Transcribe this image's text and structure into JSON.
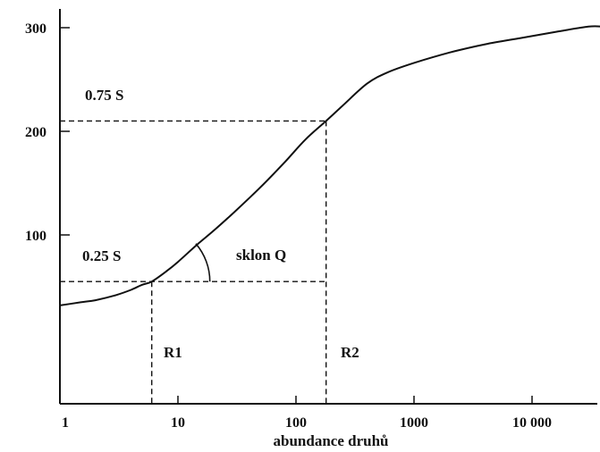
{
  "chart_data": {
    "type": "line",
    "xlabel": "abundance druhů",
    "ylabel": "",
    "x_scale": "log",
    "xlim": [
      1,
      40000
    ],
    "ylim": [
      -40,
      320
    ],
    "x_ticks": [
      {
        "value": 10,
        "label": "10"
      },
      {
        "value": 100,
        "label": "100"
      },
      {
        "value": 1000,
        "label": "1000"
      },
      {
        "value": 10000,
        "label": "10 000"
      }
    ],
    "x_origin_label": "1",
    "y_ticks": [
      {
        "value": 100,
        "label": "100"
      },
      {
        "value": 200,
        "label": "200"
      },
      {
        "value": 300,
        "label": "300"
      }
    ],
    "series": [
      {
        "x": [
          1,
          1.5,
          2,
          3,
          4,
          5,
          6,
          8,
          10,
          15,
          20,
          30,
          50,
          80,
          120,
          180,
          250,
          400,
          600,
          1000,
          2000,
          4000,
          8000,
          16000,
          30000,
          40000
        ],
        "y": [
          32,
          35,
          37,
          42,
          47,
          52,
          55,
          65,
          74,
          92,
          104,
          122,
          146,
          170,
          192,
          210,
          225,
          246,
          257,
          266,
          276,
          284,
          290,
          296,
          301,
          301
        ]
      }
    ],
    "guides": {
      "y_025S": 55,
      "y_075S": 210,
      "R1_x": 6,
      "R2_x": 180
    },
    "annotations": [
      {
        "key": "label_075",
        "text": "0.75 S"
      },
      {
        "key": "label_025",
        "text": "0.25 S"
      },
      {
        "key": "slope",
        "text": "sklon Q"
      },
      {
        "key": "R1",
        "text": "R1"
      },
      {
        "key": "R2",
        "text": "R2"
      }
    ]
  }
}
